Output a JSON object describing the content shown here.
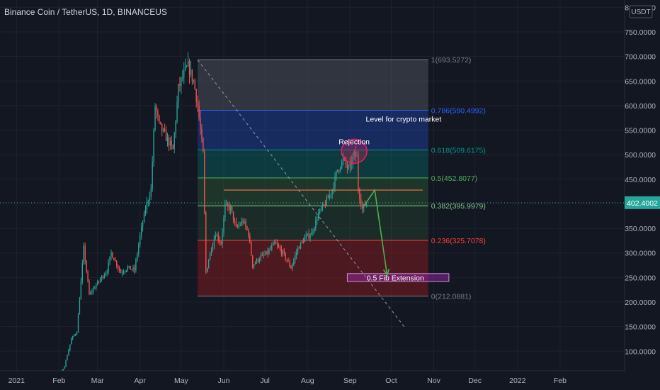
{
  "header": {
    "title": "Binance Coin / TetherUS, 1D, BINANCEUS",
    "currency": "USDT"
  },
  "colors": {
    "bg": "#131722",
    "grid": "#1e2230",
    "axis_text": "#b2b5be",
    "up": "#26a69a",
    "down": "#ef5350",
    "price_line": "#26a69a",
    "fib_top_zone": "rgba(120,123,134,0.30)",
    "fib_786_zone": "rgba(41,98,255,0.28)",
    "fib_618_zone": "rgba(0,150,136,0.28)",
    "fib_5_zone": "rgba(76,175,80,0.20)",
    "fib_382_zone": "rgba(76,175,80,0.14)",
    "fib_236_zone": "rgba(183,28,28,0.35)"
  },
  "chart_data": {
    "type": "candlestick",
    "symbol": "Binance Coin / TetherUS",
    "interval": "1D",
    "exchange": "BINANCEUS",
    "y_axis_unit": "USDT",
    "ylim": [
      60,
      815
    ],
    "x_range": [
      "2020-12-20",
      "2022-03-20"
    ],
    "y_ticks": [
      "800.0000",
      "750.0000",
      "700.0000",
      "650.0000",
      "600.0000",
      "550.0000",
      "500.0000",
      "450.0000",
      "400.0000",
      "350.0000",
      "300.0000",
      "250.0000",
      "200.0000",
      "150.0000",
      "100.0000"
    ],
    "x_ticks": [
      {
        "label": "2021",
        "date": "2021-01-01"
      },
      {
        "label": "Feb",
        "date": "2021-02-01"
      },
      {
        "label": "Mar",
        "date": "2021-03-01"
      },
      {
        "label": "Apr",
        "date": "2021-04-01"
      },
      {
        "label": "May",
        "date": "2021-05-01"
      },
      {
        "label": "Jun",
        "date": "2021-06-01"
      },
      {
        "label": "Jul",
        "date": "2021-07-01"
      },
      {
        "label": "Aug",
        "date": "2021-08-01"
      },
      {
        "label": "Sep",
        "date": "2021-09-01"
      },
      {
        "label": "Oct",
        "date": "2021-10-01"
      },
      {
        "label": "Nov",
        "date": "2021-11-01"
      },
      {
        "label": "Dec",
        "date": "2021-12-01"
      },
      {
        "label": "2022",
        "date": "2022-01-01"
      },
      {
        "label": "Feb",
        "date": "2022-02-01"
      }
    ],
    "current_price": "402.4002",
    "price_path": [
      [
        "2021-01-01",
        38
      ],
      [
        "2021-01-20",
        40
      ],
      [
        "2021-02-01",
        50
      ],
      [
        "2021-02-05",
        70
      ],
      [
        "2021-02-10",
        125
      ],
      [
        "2021-02-14",
        140
      ],
      [
        "2021-02-19",
        310
      ],
      [
        "2021-02-23",
        215
      ],
      [
        "2021-02-28",
        235
      ],
      [
        "2021-03-04",
        250
      ],
      [
        "2021-03-08",
        265
      ],
      [
        "2021-03-11",
        300
      ],
      [
        "2021-03-18",
        260
      ],
      [
        "2021-03-23",
        270
      ],
      [
        "2021-03-28",
        265
      ],
      [
        "2021-04-01",
        335
      ],
      [
        "2021-04-05",
        390
      ],
      [
        "2021-04-09",
        430
      ],
      [
        "2021-04-12",
        600
      ],
      [
        "2021-04-15",
        560
      ],
      [
        "2021-04-20",
        535
      ],
      [
        "2021-04-25",
        510
      ],
      [
        "2021-04-29",
        635
      ],
      [
        "2021-05-03",
        665
      ],
      [
        "2021-05-06",
        680
      ],
      [
        "2021-05-10",
        650
      ],
      [
        "2021-05-13",
        600
      ],
      [
        "2021-05-17",
        500
      ],
      [
        "2021-05-19",
        260
      ],
      [
        "2021-05-22",
        300
      ],
      [
        "2021-05-26",
        340
      ],
      [
        "2021-05-30",
        320
      ],
      [
        "2021-06-02",
        395
      ],
      [
        "2021-06-06",
        390
      ],
      [
        "2021-06-10",
        350
      ],
      [
        "2021-06-15",
        365
      ],
      [
        "2021-06-19",
        340
      ],
      [
        "2021-06-22",
        275
      ],
      [
        "2021-06-27",
        290
      ],
      [
        "2021-07-03",
        300
      ],
      [
        "2021-07-08",
        320
      ],
      [
        "2021-07-14",
        300
      ],
      [
        "2021-07-20",
        270
      ],
      [
        "2021-07-25",
        310
      ],
      [
        "2021-07-30",
        330
      ],
      [
        "2021-08-04",
        340
      ],
      [
        "2021-08-09",
        380
      ],
      [
        "2021-08-14",
        400
      ],
      [
        "2021-08-19",
        430
      ],
      [
        "2021-08-23",
        470
      ],
      [
        "2021-08-27",
        490
      ],
      [
        "2021-08-31",
        470
      ],
      [
        "2021-09-04",
        500
      ],
      [
        "2021-09-06",
        495
      ],
      [
        "2021-09-07",
        430
      ],
      [
        "2021-09-10",
        390
      ],
      [
        "2021-09-13",
        402
      ]
    ],
    "fibonacci": {
      "start_date": "2021-05-13",
      "end_date": "2021-10-28",
      "levels": [
        {
          "label": "1(693.5272)",
          "value": 693.5272,
          "color": "#787b86"
        },
        {
          "label": "0.786(590.4992)",
          "value": 590.4992,
          "color": "#2962ff"
        },
        {
          "label": "0.618(509.6175)",
          "value": 509.6175,
          "color": "#009688"
        },
        {
          "label": "0.5(452.8077)",
          "value": 452.8077,
          "color": "#4caf50"
        },
        {
          "label": "0.382(395.9979)",
          "value": 395.9979,
          "color": "#81c784"
        },
        {
          "label": "0.236(325.7078)",
          "value": 325.7078,
          "color": "#f44336"
        },
        {
          "label": "0(212.0881)",
          "value": 212.0881,
          "color": "#787b86"
        }
      ]
    },
    "annotations": [
      {
        "text": "Level for crypto market",
        "date": "2021-10-10",
        "value": 573
      },
      {
        "text": "Rejection",
        "date": "2021-09-04",
        "value": 527
      },
      {
        "text": "0.5 Fib Extension",
        "date": "2021-10-04",
        "value": 250
      }
    ],
    "resistance_line": {
      "start": "2021-06-01",
      "end": "2021-10-24",
      "value": 428
    },
    "rejection_circle": {
      "date": "2021-09-04",
      "value": 507
    },
    "extension_box": {
      "start": "2021-08-30",
      "end": "2021-11-12",
      "top": 258,
      "bottom": 242
    },
    "projection_path": [
      [
        "2021-09-11",
        395
      ],
      [
        "2021-09-19",
        428
      ],
      [
        "2021-09-28",
        255
      ]
    ],
    "diagonal_line": {
      "start": [
        "2021-05-13",
        693
      ],
      "end": [
        "2021-10-11",
        148
      ]
    }
  }
}
